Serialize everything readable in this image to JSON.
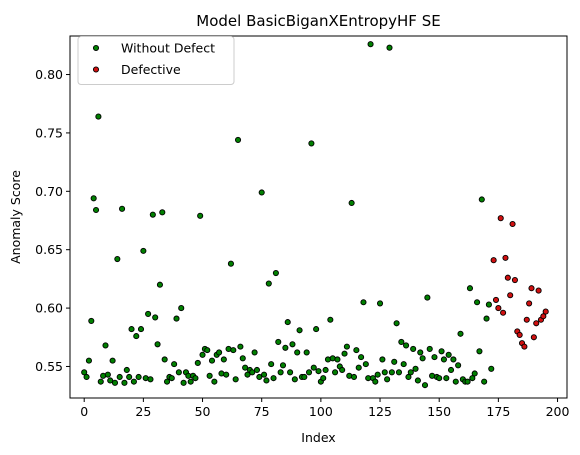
{
  "chart_data": {
    "type": "scatter",
    "title": "Model BasicBiganXEntropyHF SE",
    "xlabel": "Index",
    "ylabel": "Anomaly Score",
    "xlim": [
      -6,
      204
    ],
    "ylim": [
      0.523,
      0.833
    ],
    "xticks": [
      0,
      25,
      50,
      75,
      100,
      125,
      150,
      175,
      200
    ],
    "yticks": [
      0.55,
      0.6,
      0.65,
      0.7,
      0.75,
      0.8
    ],
    "ytick_labels": [
      "0.55",
      "0.60",
      "0.65",
      "0.70",
      "0.75",
      "0.80"
    ],
    "grid": false,
    "legend_position": "top-left",
    "series": [
      {
        "name": "Without Defect",
        "color": "#008000",
        "edge_color": "#000000",
        "points": [
          [
            0,
            0.545
          ],
          [
            1,
            0.541
          ],
          [
            2,
            0.555
          ],
          [
            3,
            0.589
          ],
          [
            4,
            0.694
          ],
          [
            5,
            0.684
          ],
          [
            6,
            0.764
          ],
          [
            7,
            0.537
          ],
          [
            8,
            0.542
          ],
          [
            9,
            0.568
          ],
          [
            10,
            0.543
          ],
          [
            11,
            0.538
          ],
          [
            12,
            0.555
          ],
          [
            13,
            0.536
          ],
          [
            14,
            0.642
          ],
          [
            15,
            0.541
          ],
          [
            16,
            0.685
          ],
          [
            17,
            0.536
          ],
          [
            18,
            0.547
          ],
          [
            19,
            0.541
          ],
          [
            20,
            0.582
          ],
          [
            21,
            0.537
          ],
          [
            22,
            0.576
          ],
          [
            23,
            0.541
          ],
          [
            24,
            0.582
          ],
          [
            25,
            0.649
          ],
          [
            26,
            0.54
          ],
          [
            27,
            0.595
          ],
          [
            28,
            0.539
          ],
          [
            29,
            0.68
          ],
          [
            30,
            0.592
          ],
          [
            31,
            0.569
          ],
          [
            32,
            0.62
          ],
          [
            33,
            0.682
          ],
          [
            34,
            0.556
          ],
          [
            35,
            0.537
          ],
          [
            36,
            0.541
          ],
          [
            37,
            0.54
          ],
          [
            38,
            0.552
          ],
          [
            39,
            0.591
          ],
          [
            40,
            0.545
          ],
          [
            41,
            0.6
          ],
          [
            42,
            0.536
          ],
          [
            43,
            0.545
          ],
          [
            44,
            0.542
          ],
          [
            45,
            0.537
          ],
          [
            46,
            0.542
          ],
          [
            47,
            0.54
          ],
          [
            48,
            0.553
          ],
          [
            49,
            0.679
          ],
          [
            50,
            0.56
          ],
          [
            51,
            0.565
          ],
          [
            52,
            0.564
          ],
          [
            53,
            0.542
          ],
          [
            54,
            0.555
          ],
          [
            55,
            0.537
          ],
          [
            56,
            0.56
          ],
          [
            57,
            0.562
          ],
          [
            58,
            0.544
          ],
          [
            59,
            0.556
          ],
          [
            60,
            0.543
          ],
          [
            61,
            0.565
          ],
          [
            62,
            0.638
          ],
          [
            63,
            0.564
          ],
          [
            64,
            0.539
          ],
          [
            65,
            0.744
          ],
          [
            66,
            0.567
          ],
          [
            67,
            0.557
          ],
          [
            68,
            0.549
          ],
          [
            69,
            0.543
          ],
          [
            70,
            0.547
          ],
          [
            71,
            0.545
          ],
          [
            72,
            0.562
          ],
          [
            73,
            0.547
          ],
          [
            74,
            0.541
          ],
          [
            75,
            0.699
          ],
          [
            76,
            0.543
          ],
          [
            77,
            0.538
          ],
          [
            78,
            0.621
          ],
          [
            79,
            0.552
          ],
          [
            80,
            0.54
          ],
          [
            81,
            0.63
          ],
          [
            82,
            0.571
          ],
          [
            83,
            0.545
          ],
          [
            84,
            0.551
          ],
          [
            85,
            0.566
          ],
          [
            86,
            0.588
          ],
          [
            87,
            0.545
          ],
          [
            88,
            0.569
          ],
          [
            89,
            0.539
          ],
          [
            90,
            0.562
          ],
          [
            91,
            0.581
          ],
          [
            92,
            0.541
          ],
          [
            93,
            0.541
          ],
          [
            94,
            0.562
          ],
          [
            95,
            0.545
          ],
          [
            96,
            0.741
          ],
          [
            97,
            0.549
          ],
          [
            98,
            0.582
          ],
          [
            99,
            0.546
          ],
          [
            100,
            0.537
          ],
          [
            101,
            0.54
          ],
          [
            102,
            0.547
          ],
          [
            103,
            0.556
          ],
          [
            104,
            0.59
          ],
          [
            105,
            0.557
          ],
          [
            106,
            0.545
          ],
          [
            107,
            0.556
          ],
          [
            108,
            0.55
          ],
          [
            109,
            0.547
          ],
          [
            110,
            0.561
          ],
          [
            111,
            0.567
          ],
          [
            112,
            0.542
          ],
          [
            113,
            0.69
          ],
          [
            114,
            0.541
          ],
          [
            115,
            0.564
          ],
          [
            116,
            0.549
          ],
          [
            117,
            0.558
          ],
          [
            118,
            0.605
          ],
          [
            119,
            0.552
          ],
          [
            120,
            0.54
          ],
          [
            121,
            0.826
          ],
          [
            122,
            0.54
          ],
          [
            123,
            0.537
          ],
          [
            124,
            0.543
          ],
          [
            125,
            0.604
          ],
          [
            126,
            0.556
          ],
          [
            127,
            0.545
          ],
          [
            128,
            0.539
          ],
          [
            129,
            0.823
          ],
          [
            130,
            0.545
          ],
          [
            131,
            0.554
          ],
          [
            132,
            0.587
          ],
          [
            133,
            0.545
          ],
          [
            134,
            0.571
          ],
          [
            135,
            0.552
          ],
          [
            136,
            0.568
          ],
          [
            137,
            0.541
          ],
          [
            138,
            0.545
          ],
          [
            139,
            0.565
          ],
          [
            140,
            0.548
          ],
          [
            141,
            0.538
          ],
          [
            142,
            0.562
          ],
          [
            143,
            0.557
          ],
          [
            144,
            0.534
          ],
          [
            145,
            0.609
          ],
          [
            146,
            0.565
          ],
          [
            147,
            0.542
          ],
          [
            148,
            0.558
          ],
          [
            149,
            0.541
          ],
          [
            150,
            0.54
          ],
          [
            151,
            0.563
          ],
          [
            152,
            0.556
          ],
          [
            153,
            0.54
          ],
          [
            154,
            0.56
          ],
          [
            155,
            0.547
          ],
          [
            156,
            0.556
          ],
          [
            157,
            0.537
          ],
          [
            158,
            0.551
          ],
          [
            159,
            0.578
          ],
          [
            160,
            0.539
          ],
          [
            161,
            0.537
          ],
          [
            162,
            0.537
          ],
          [
            163,
            0.617
          ],
          [
            164,
            0.54
          ],
          [
            165,
            0.544
          ],
          [
            166,
            0.605
          ],
          [
            167,
            0.563
          ],
          [
            168,
            0.693
          ],
          [
            169,
            0.537
          ],
          [
            170,
            0.591
          ],
          [
            171,
            0.603
          ],
          [
            172,
            0.548
          ]
        ]
      },
      {
        "name": "Defective",
        "color": "#d01010",
        "edge_color": "#000000",
        "points": [
          [
            173,
            0.641
          ],
          [
            174,
            0.607
          ],
          [
            175,
            0.6
          ],
          [
            176,
            0.677
          ],
          [
            177,
            0.596
          ],
          [
            178,
            0.643
          ],
          [
            179,
            0.626
          ],
          [
            180,
            0.611
          ],
          [
            181,
            0.672
          ],
          [
            182,
            0.624
          ],
          [
            183,
            0.58
          ],
          [
            184,
            0.577
          ],
          [
            185,
            0.57
          ],
          [
            186,
            0.567
          ],
          [
            187,
            0.59
          ],
          [
            188,
            0.604
          ],
          [
            189,
            0.617
          ],
          [
            190,
            0.575
          ],
          [
            191,
            0.587
          ],
          [
            192,
            0.615
          ],
          [
            193,
            0.59
          ],
          [
            194,
            0.593
          ],
          [
            195,
            0.597
          ]
        ]
      }
    ]
  }
}
